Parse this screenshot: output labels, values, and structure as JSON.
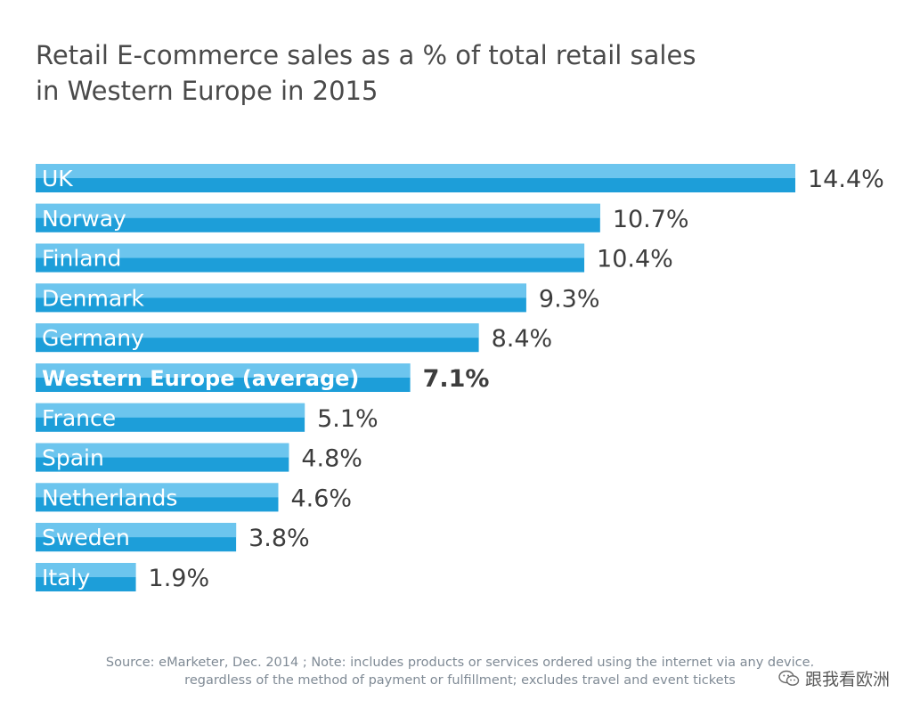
{
  "chart_data": {
    "type": "bar",
    "orientation": "horizontal",
    "title_lines": [
      "Retail E-commerce sales as a % of total retail sales",
      "in Western Europe in 2015"
    ],
    "categories": [
      "UK",
      "Norway",
      "Finland",
      "Denmark",
      "Germany",
      "Western Europe (average)",
      "France",
      "Spain",
      "Netherlands",
      "Sweden",
      "Italy"
    ],
    "values": [
      14.4,
      10.7,
      10.4,
      9.3,
      8.4,
      7.1,
      5.1,
      4.8,
      4.6,
      3.8,
      1.9
    ],
    "value_labels": [
      "14.4%",
      "10.7%",
      "10.4%",
      "9.3%",
      "8.4%",
      "7.1%",
      "5.1%",
      "4.8%",
      "4.6%",
      "3.8%",
      "1.9%"
    ],
    "highlight_category": "Western Europe (average)",
    "xlim": [
      0,
      14.4
    ],
    "grid": false,
    "colors": {
      "bar": "#1d9ed9",
      "bar_highlight_stripe": "#6cc5ee",
      "bar_label": "#ffffff",
      "value_label": "#3d3d3d",
      "title": "#4a4a4a"
    }
  },
  "source": {
    "line1": "Source: eMarketer, Dec. 2014 ; Note: includes products or services ordered using the internet via any device,",
    "line2": "regardless of the method of payment or fulfillment; excludes travel and event tickets"
  },
  "watermark": {
    "text": "跟我看欧洲",
    "icon": "wechat-icon"
  }
}
